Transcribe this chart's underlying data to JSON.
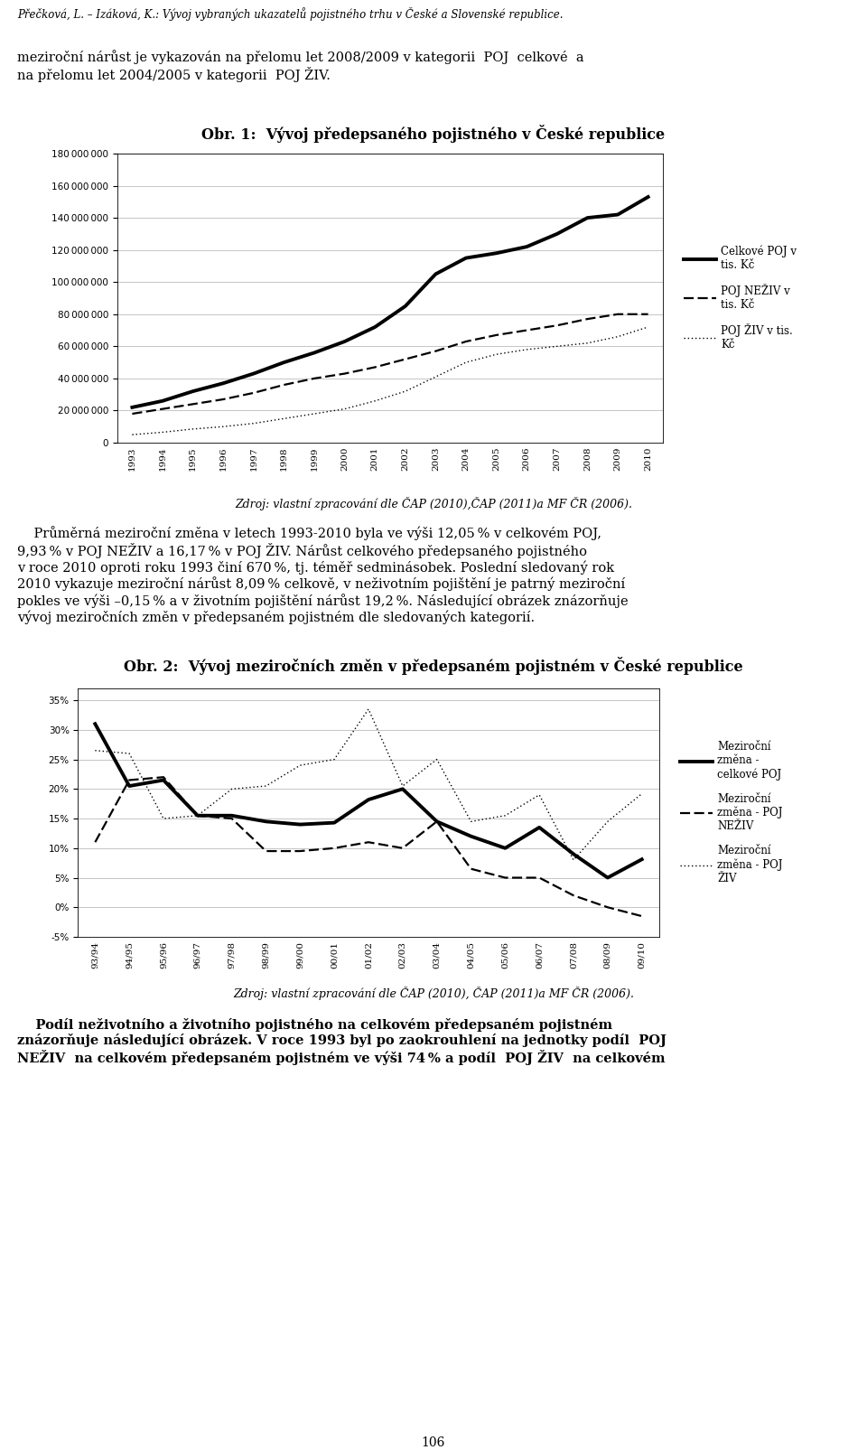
{
  "chart1_title": "Obr. 1:  Vývoj předepsaného pojistného v České republice",
  "chart1_years": [
    1993,
    1994,
    1995,
    1996,
    1997,
    1998,
    1999,
    2000,
    2001,
    2002,
    2003,
    2004,
    2005,
    2006,
    2007,
    2008,
    2009,
    2010
  ],
  "chart1_celkove": [
    22000000,
    26000000,
    32000000,
    37000000,
    43000000,
    50000000,
    56000000,
    63000000,
    72000000,
    85000000,
    105000000,
    115000000,
    118000000,
    122000000,
    130000000,
    140000000,
    142000000,
    153000000
  ],
  "chart1_neziv": [
    18000000,
    21000000,
    24000000,
    27000000,
    31000000,
    36000000,
    40000000,
    43000000,
    47000000,
    52000000,
    57000000,
    63000000,
    67000000,
    70000000,
    73000000,
    77000000,
    80000000,
    80000000
  ],
  "chart1_ziv": [
    5000000,
    6500000,
    8500000,
    10000000,
    12000000,
    15000000,
    18000000,
    21000000,
    26000000,
    32000000,
    41000000,
    50000000,
    55000000,
    58000000,
    60000000,
    62000000,
    66000000,
    72000000
  ],
  "chart1_ylim": [
    0,
    180000000
  ],
  "chart1_yticks": [
    0,
    20000000,
    40000000,
    60000000,
    80000000,
    100000000,
    120000000,
    140000000,
    160000000,
    180000000
  ],
  "chart1_legend": [
    "Celkové POJ v\ntis. Kč",
    "POJ NEŽIV v\ntis. Kč",
    "POJ ŽIV v tis.\nKč"
  ],
  "chart1_source": "Zdroj: vlastní zpracování dle ČAP (2010),ČAP (2011)a MF ČR (2006).",
  "chart2_title": "Obr. 2:  Vývoj meziročních změn v předepsaném pojistném v České republice",
  "chart2_xlabels": [
    "93/94",
    "94/95",
    "95/96",
    "96/97",
    "97/98",
    "98/99",
    "99/00",
    "00/01",
    "01/02",
    "02/03",
    "03/04",
    "04/05",
    "05/06",
    "06/07",
    "07/08",
    "08/09",
    "09/10"
  ],
  "chart2_celkove": [
    0.31,
    0.205,
    0.215,
    0.155,
    0.155,
    0.145,
    0.14,
    0.143,
    0.182,
    0.2,
    0.145,
    0.12,
    0.1,
    0.135,
    0.09,
    0.05,
    0.081
  ],
  "chart2_neziv": [
    0.11,
    0.215,
    0.22,
    0.155,
    0.15,
    0.095,
    0.095,
    0.1,
    0.11,
    0.1,
    0.145,
    0.065,
    0.05,
    0.05,
    0.02,
    0.0,
    -0.015
  ],
  "chart2_ziv": [
    0.265,
    0.26,
    0.15,
    0.155,
    0.2,
    0.205,
    0.24,
    0.25,
    0.335,
    0.205,
    0.25,
    0.145,
    0.155,
    0.19,
    0.08,
    0.145,
    0.192
  ],
  "chart2_ylim": [
    -0.05,
    0.37
  ],
  "chart2_yticks": [
    -0.05,
    0.0,
    0.05,
    0.1,
    0.15,
    0.2,
    0.25,
    0.3,
    0.35
  ],
  "chart2_legend": [
    "Meziroční\nzměna -\ncelkové POJ",
    "Meziroční\nzměna - POJ\nNEŽIV",
    "Meziroční\nzměna - POJ\nŽIV"
  ],
  "chart2_source": "Zdroj: vlastní zpracování dle ČAP (2010), ČAP (2011)a MF ČR (2006).",
  "header_line1": "Přečková, L. – Izáková, K.: Vývoj vybraných ukazatelů pojistného trhu v České a Slovenské republice.",
  "page_number": "106",
  "bg_color": "#ffffff",
  "text_color": "#000000"
}
